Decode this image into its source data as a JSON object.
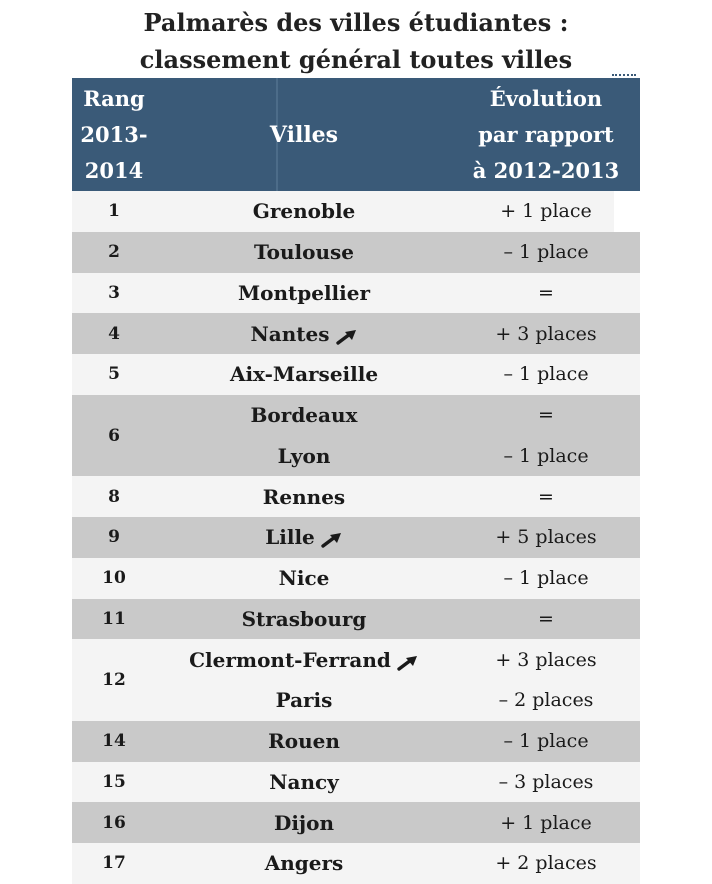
{
  "title": {
    "line1": "Palmarès des villes étudiantes :",
    "line2": "classement général toutes villes"
  },
  "headers": {
    "rank": [
      "Rang",
      "2013-",
      "2014"
    ],
    "city": "Villes",
    "evolution": [
      "Évolution",
      "par rapport",
      "à 2012-2013"
    ]
  },
  "rows": [
    {
      "rank": "1",
      "entries": [
        {
          "city": "Grenoble",
          "evolution": "+ 1 place"
        }
      ]
    },
    {
      "rank": "2",
      "entries": [
        {
          "city": "Toulouse",
          "evolution": "– 1 place"
        }
      ]
    },
    {
      "rank": "3",
      "entries": [
        {
          "city": "Montpellier",
          "evolution": "="
        }
      ]
    },
    {
      "rank": "4",
      "entries": [
        {
          "city": "Nantes",
          "evolution": "+ 3 places",
          "trend_icon": "arrow-up-right-icon"
        }
      ]
    },
    {
      "rank": "5",
      "entries": [
        {
          "city": "Aix-Marseille",
          "evolution": "– 1 place"
        }
      ]
    },
    {
      "rank": "6",
      "entries": [
        {
          "city": "Bordeaux",
          "evolution": "="
        },
        {
          "city": "Lyon",
          "evolution": "– 1 place"
        }
      ]
    },
    {
      "rank": "8",
      "entries": [
        {
          "city": "Rennes",
          "evolution": "="
        }
      ]
    },
    {
      "rank": "9",
      "entries": [
        {
          "city": "Lille",
          "evolution": "+ 5 places",
          "trend_icon": "arrow-up-right-icon"
        }
      ]
    },
    {
      "rank": "10",
      "entries": [
        {
          "city": "Nice",
          "evolution": "– 1 place"
        }
      ]
    },
    {
      "rank": "11",
      "entries": [
        {
          "city": "Strasbourg",
          "evolution": "="
        }
      ]
    },
    {
      "rank": "12",
      "entries": [
        {
          "city": "Clermont-Ferrand",
          "evolution": "+ 3 places",
          "trend_icon": "arrow-up-right-icon"
        },
        {
          "city": "Paris",
          "evolution": "– 2 places"
        }
      ]
    },
    {
      "rank": "14",
      "entries": [
        {
          "city": "Rouen",
          "evolution": "– 1 place"
        }
      ]
    },
    {
      "rank": "15",
      "entries": [
        {
          "city": "Nancy",
          "evolution": "– 3 places"
        }
      ]
    },
    {
      "rank": "16",
      "entries": [
        {
          "city": "Dijon",
          "evolution": "+ 1 place"
        }
      ]
    },
    {
      "rank": "17",
      "entries": [
        {
          "city": "Angers",
          "evolution": "+ 2 places"
        }
      ]
    }
  ],
  "colors": {
    "header_bg": "#3a5a78",
    "row_light": "#f4f4f4",
    "row_dark": "#c9c9c9"
  }
}
